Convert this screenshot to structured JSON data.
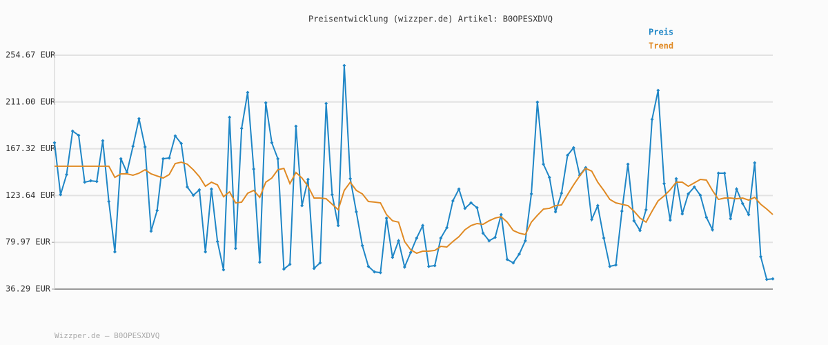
{
  "chart_data": {
    "type": "line",
    "title": "Preisentwicklung (wizzper.de) Artikel: B0OPESXDVQ",
    "footer": "Wizzper.de – B0OPESXDVQ",
    "ylim": [
      36.29,
      254.67
    ],
    "yticks": [
      {
        "value": 36.29,
        "label": "36.29 EUR"
      },
      {
        "value": 79.97,
        "label": "79.97 EUR"
      },
      {
        "value": 123.64,
        "label": "123.64 EUR"
      },
      {
        "value": 167.32,
        "label": "167.32 EUR"
      },
      {
        "value": 211.0,
        "label": "211.00 EUR"
      },
      {
        "value": 254.67,
        "label": "254.67 EUR"
      }
    ],
    "grid": true,
    "legend": "top-right",
    "series": [
      {
        "name": "Preis",
        "color": "#1f86c6",
        "markers": true,
        "values": [
          172.9,
          124.5,
          143.2,
          183.8,
          179.9,
          136.1,
          137.4,
          136.8,
          174.8,
          118.1,
          71.1,
          158.0,
          145.2,
          169.6,
          195.4,
          169.0,
          90.4,
          109.7,
          158.0,
          158.7,
          179.3,
          172.2,
          131.6,
          123.9,
          129.0,
          71.1,
          129.7,
          80.7,
          54.3,
          196.7,
          74.3,
          186.4,
          219.9,
          148.4,
          61.4,
          210.2,
          172.9,
          158.0,
          55.0,
          59.5,
          188.3,
          114.2,
          138.7,
          55.6,
          60.8,
          209.6,
          124.5,
          95.6,
          245.0,
          139.4,
          108.4,
          76.9,
          57.5,
          52.4,
          51.7,
          102.6,
          65.9,
          81.4,
          56.9,
          70.4,
          84.0,
          95.6,
          57.5,
          58.2,
          84.0,
          93.6,
          118.7,
          129.7,
          111.7,
          116.8,
          112.3,
          88.5,
          81.4,
          84.6,
          105.9,
          64.0,
          60.8,
          69.1,
          81.4,
          125.2,
          210.9,
          152.9,
          140.6,
          108.4,
          125.8,
          161.3,
          168.3,
          142.6,
          149.7,
          101.3,
          114.2,
          84.0,
          57.5,
          58.8,
          109.1,
          152.9,
          100.1,
          91.0,
          110.4,
          194.8,
          221.8,
          134.8,
          100.7,
          139.4,
          106.5,
          125.2,
          131.6,
          123.9,
          103.3,
          91.7,
          144.5,
          144.5,
          102.0,
          129.7,
          116.2,
          105.9,
          154.2,
          66.6,
          45.3,
          45.9
        ]
      },
      {
        "name": "Trend",
        "color": "#e08a24",
        "markers": false,
        "values": [
          151.0,
          151.0,
          151.0,
          151.0,
          151.0,
          151.0,
          151.0,
          151.0,
          151.0,
          151.0,
          140.6,
          143.9,
          143.9,
          142.6,
          144.5,
          147.7,
          143.9,
          141.9,
          140.0,
          143.2,
          153.5,
          154.8,
          152.9,
          147.7,
          141.3,
          132.3,
          136.1,
          133.6,
          122.6,
          127.1,
          116.8,
          117.5,
          125.8,
          128.4,
          122.0,
          136.1,
          140.0,
          147.7,
          149.0,
          134.8,
          145.2,
          140.0,
          132.3,
          121.3,
          121.3,
          120.7,
          115.5,
          110.4,
          128.4,
          136.1,
          128.4,
          125.2,
          118.1,
          117.5,
          116.8,
          105.9,
          100.1,
          98.8,
          80.7,
          73.0,
          69.8,
          71.7,
          71.7,
          72.4,
          76.2,
          75.6,
          80.7,
          85.2,
          91.7,
          95.6,
          97.5,
          96.8,
          100.1,
          102.6,
          103.9,
          98.8,
          91.0,
          88.5,
          87.2,
          98.8,
          105.2,
          111.0,
          111.7,
          114.2,
          114.9,
          124.5,
          133.6,
          141.9,
          149.0,
          146.4,
          136.1,
          128.4,
          120.0,
          116.8,
          115.5,
          114.2,
          109.1,
          102.6,
          98.8,
          109.1,
          118.7,
          123.3,
          129.0,
          136.1,
          136.1,
          132.3,
          135.5,
          138.7,
          138.1,
          128.4,
          120.0,
          121.3,
          121.3,
          120.7,
          121.3,
          119.4,
          122.0,
          115.5,
          111.0,
          105.9
        ]
      }
    ]
  }
}
